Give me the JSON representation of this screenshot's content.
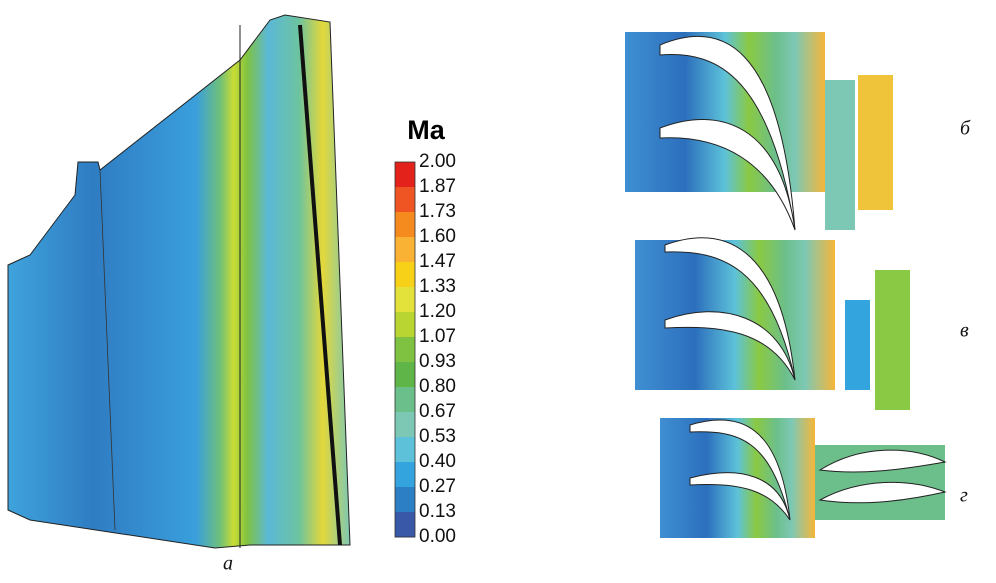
{
  "figure": {
    "colorbar": {
      "title": "Ma",
      "labels": [
        "2.00",
        "1.87",
        "1.73",
        "1.60",
        "1.47",
        "1.33",
        "1.20",
        "1.07",
        "0.93",
        "0.80",
        "0.67",
        "0.53",
        "0.40",
        "0.27",
        "0.13",
        "0.00"
      ],
      "colors": [
        "#e3221c",
        "#ef5523",
        "#f58a1f",
        "#f9b233",
        "#f7d117",
        "#e2e23a",
        "#b9d532",
        "#7fc241",
        "#5fb548",
        "#6bbf8a",
        "#7dc8b5",
        "#5dc2d9",
        "#34a4df",
        "#2c7fc4",
        "#3a58a8"
      ]
    },
    "panel_labels": [
      "а",
      "б",
      "в",
      "г"
    ]
  }
}
